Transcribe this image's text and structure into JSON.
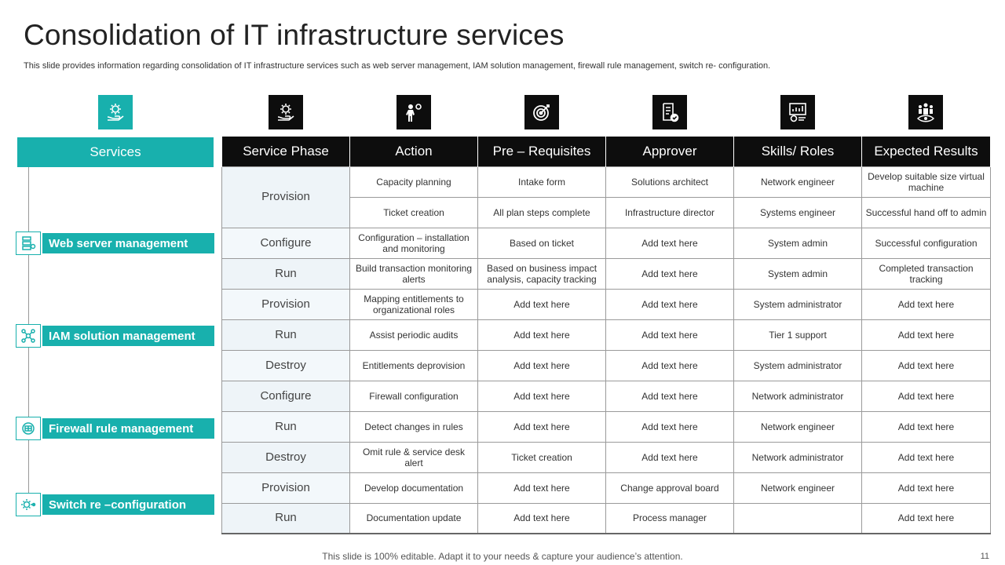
{
  "slide": {
    "title": "Consolidation of IT infrastructure services",
    "subtitle": "This slide provides information regarding consolidation of IT infrastructure services such as web server management, IAM  solution management, firewall rule management, switch re- configuration.",
    "footer": "This slide is 100% editable. Adapt it to your needs & capture your audience’s attention.",
    "page_number": "11"
  },
  "colors": {
    "accent": "#18b0ad",
    "header_dark": "#0d0d0d"
  },
  "icons": [
    "gear-hand-icon",
    "gear-hand-icon",
    "person-gear-icon",
    "target-icon",
    "document-check-icon",
    "chart-money-icon",
    "team-eye-icon"
  ],
  "services": {
    "header": "Services",
    "items": [
      {
        "label": "Web server management",
        "icon": "server-icon"
      },
      {
        "label": "IAM solution management",
        "icon": "network-icon"
      },
      {
        "label": "Firewall rule management",
        "icon": "firewall-icon"
      },
      {
        "label": "Switch re –configuration",
        "icon": "switch-icon"
      }
    ]
  },
  "table": {
    "headers": [
      "Service Phase",
      "Action",
      "Pre – Requisites",
      "Approver",
      "Skills/ Roles",
      "Expected Results"
    ],
    "rows": [
      [
        "Provision",
        "Capacity planning",
        "Intake form",
        "Solutions architect",
        "Network engineer",
        "Develop suitable size virtual machine"
      ],
      [
        "",
        "Ticket creation",
        "All plan steps complete",
        "Infrastructure director",
        "Systems engineer",
        "Successful hand off to admin"
      ],
      [
        "Configure",
        "Configuration – installation and monitoring",
        "Based on ticket",
        "Add text here",
        "System admin",
        "Successful configuration"
      ],
      [
        "Run",
        "Build transaction monitoring alerts",
        "Based on business impact analysis, capacity tracking",
        "Add text here",
        "System admin",
        "Completed transaction tracking"
      ],
      [
        "Provision",
        "Mapping entitlements to organizational roles",
        "Add text here",
        "Add text here",
        "System administrator",
        "Add text here"
      ],
      [
        "Run",
        "Assist periodic audits",
        "Add text here",
        "Add text here",
        "Tier 1 support",
        "Add text here"
      ],
      [
        "Destroy",
        "Entitlements deprovision",
        "Add text here",
        "Add text here",
        "System administrator",
        "Add text here"
      ],
      [
        "Configure",
        "Firewall configuration",
        "Add text here",
        "Add text here",
        "Network administrator",
        "Add text here"
      ],
      [
        "Run",
        "Detect changes in rules",
        "Add text here",
        "Add text here",
        "Network engineer",
        "Add text here"
      ],
      [
        "Destroy",
        "Omit rule & service desk alert",
        "Ticket creation",
        "Add text here",
        "Network administrator",
        "Add text here"
      ],
      [
        "Provision",
        "Develop documentation",
        "Add text here",
        "Change approval board",
        "Network engineer",
        "Add text here"
      ],
      [
        "Run",
        "Documentation update",
        "Add text here",
        "Process manager",
        "",
        "Add text here"
      ]
    ]
  }
}
